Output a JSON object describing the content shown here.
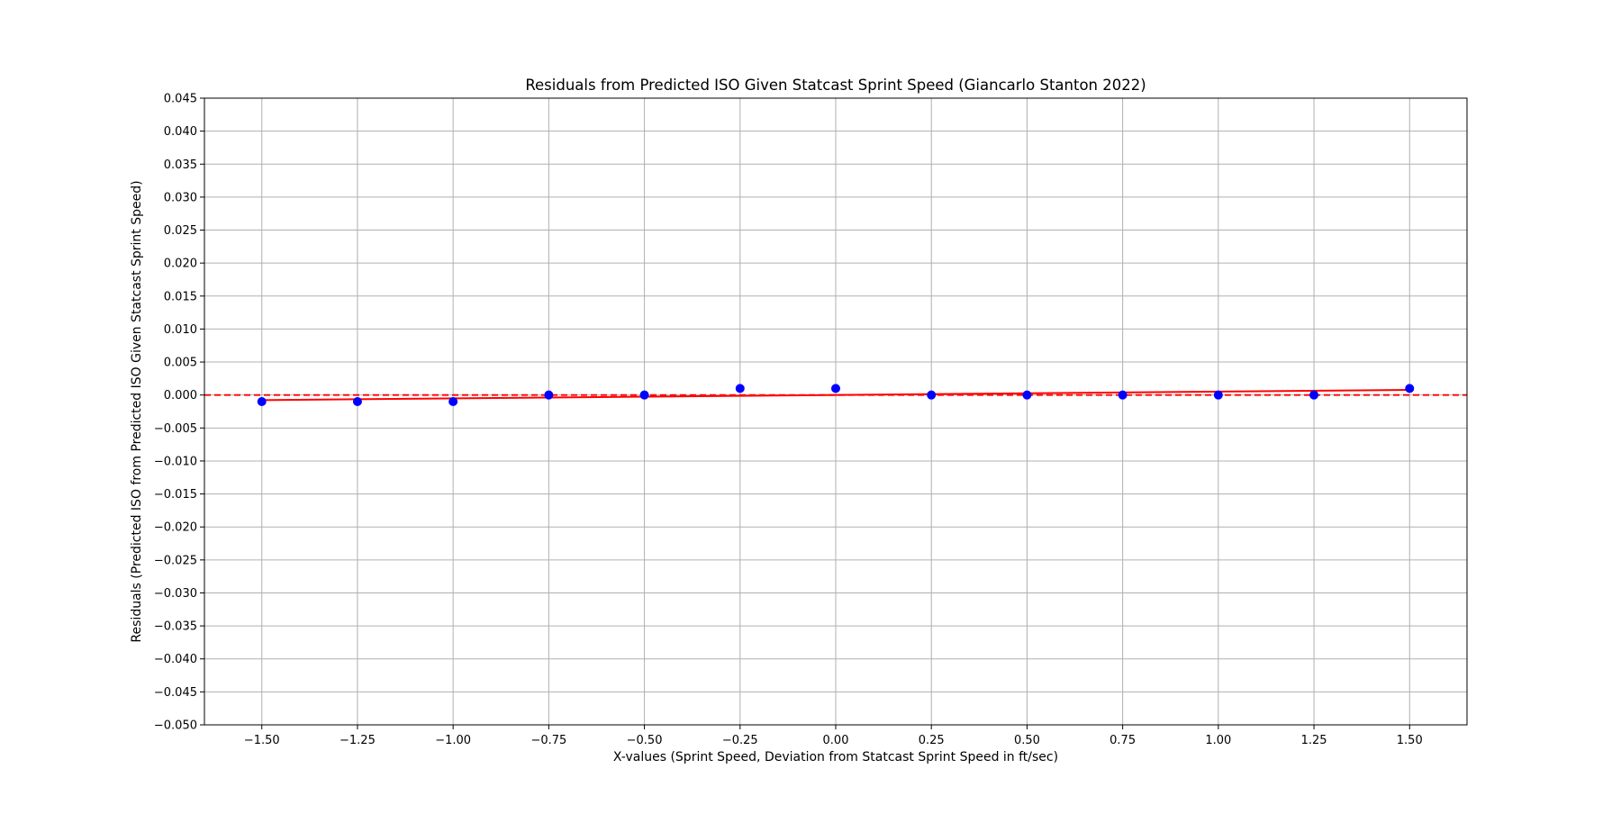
{
  "chart_data": {
    "type": "scatter",
    "title": "Residuals from Predicted ISO Given Statcast Sprint Speed (Giancarlo Stanton 2022)",
    "xlabel": "X-values (Sprint Speed, Deviation from Statcast Sprint Speed in ft/sec)",
    "ylabel": "Residuals (Predicted ISO from Predicted ISO Given Statcast Sprint Speed)",
    "xlim": [
      -1.65,
      1.65
    ],
    "ylim": [
      -0.05,
      0.045
    ],
    "x_ticks": [
      -1.5,
      -1.25,
      -1.0,
      -0.75,
      -0.5,
      -0.25,
      0.0,
      0.25,
      0.5,
      0.75,
      1.0,
      1.25,
      1.5
    ],
    "x_tick_labels": [
      "−1.50",
      "−1.25",
      "−1.00",
      "−0.75",
      "−0.50",
      "−0.25",
      "0.00",
      "0.25",
      "0.50",
      "0.75",
      "1.00",
      "1.25",
      "1.50"
    ],
    "y_ticks": [
      0.045,
      0.04,
      0.035,
      0.03,
      0.025,
      0.02,
      0.015,
      0.01,
      0.005,
      0.0,
      -0.005,
      -0.01,
      -0.015,
      -0.02,
      -0.025,
      -0.03,
      -0.035,
      -0.04,
      -0.045,
      -0.05
    ],
    "y_tick_labels": [
      "0.045",
      "0.040",
      "0.035",
      "0.030",
      "0.025",
      "0.020",
      "0.015",
      "0.010",
      "0.005",
      "0.000",
      "−0.005",
      "−0.010",
      "−0.015",
      "−0.020",
      "−0.025",
      "−0.030",
      "−0.035",
      "−0.040",
      "−0.045",
      "−0.050"
    ],
    "grid": true,
    "series": [
      {
        "kind": "scatter",
        "color": "#0000ff",
        "x": [
          -1.5,
          -1.25,
          -1.0,
          -0.75,
          -0.5,
          -0.25,
          0.0,
          0.25,
          0.5,
          0.75,
          1.0,
          1.25,
          1.5
        ],
        "y": [
          -0.001,
          -0.001,
          -0.001,
          0.0,
          0.0,
          0.001,
          0.001,
          0.0,
          0.0,
          0.0,
          0.0,
          0.0,
          0.001
        ]
      },
      {
        "kind": "fit-line",
        "color": "#ff0000",
        "x": [
          -1.5,
          1.5
        ],
        "y": [
          -0.00077,
          0.00077
        ]
      },
      {
        "kind": "reference-line",
        "color": "#ff0000",
        "style": "dashed",
        "y": 0.0
      }
    ]
  }
}
